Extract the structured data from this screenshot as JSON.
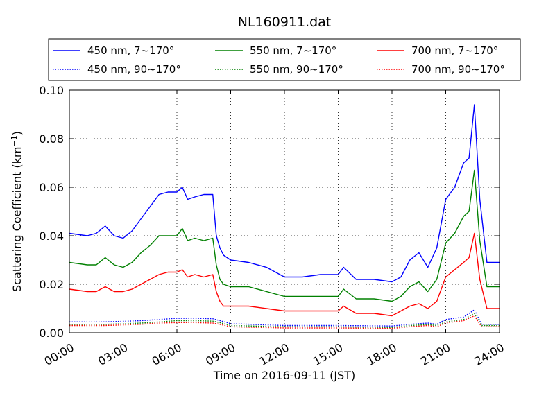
{
  "chart_data": {
    "type": "line",
    "title": "NL160911.dat",
    "xlabel": "Time on 2016-09-11 (JST)",
    "ylabel_main": "Scattering Coefficient (km",
    "ylabel_sup": "−1",
    "ylabel_tail": ")",
    "xlim": [
      0,
      24
    ],
    "ylim": [
      0,
      0.1
    ],
    "grid": true,
    "legend_position": "top",
    "x_ticks": [
      {
        "value": 0,
        "label": "00:00"
      },
      {
        "value": 3,
        "label": "03:00"
      },
      {
        "value": 6,
        "label": "06:00"
      },
      {
        "value": 9,
        "label": "09:00"
      },
      {
        "value": 12,
        "label": "12:00"
      },
      {
        "value": 15,
        "label": "15:00"
      },
      {
        "value": 18,
        "label": "18:00"
      },
      {
        "value": 21,
        "label": "21:00"
      },
      {
        "value": 24,
        "label": "24:00"
      }
    ],
    "y_ticks": [
      {
        "value": 0,
        "label": "0.00"
      },
      {
        "value": 0.02,
        "label": "0.02"
      },
      {
        "value": 0.04,
        "label": "0.04"
      },
      {
        "value": 0.06,
        "label": "0.06"
      },
      {
        "value": 0.08,
        "label": "0.08"
      },
      {
        "value": 0.1,
        "label": "0.10"
      }
    ],
    "series": [
      {
        "name": "450 nm, 7∼170°",
        "color": "#0000ff",
        "style": "solid",
        "x": [
          0,
          1,
          1.5,
          2,
          2.5,
          3,
          3.5,
          4,
          4.5,
          5,
          5.5,
          6,
          6.3,
          6.6,
          7,
          7.5,
          8,
          8.2,
          8.4,
          8.6,
          9,
          10,
          11,
          12,
          13,
          14,
          15,
          15.3,
          16,
          17,
          18,
          18.5,
          19,
          19.5,
          20,
          20.5,
          21,
          21.5,
          22,
          22.3,
          22.6,
          22.9,
          23.3,
          24
        ],
        "y": [
          0.041,
          0.04,
          0.041,
          0.044,
          0.04,
          0.039,
          0.042,
          0.047,
          0.052,
          0.057,
          0.058,
          0.058,
          0.06,
          0.055,
          0.056,
          0.057,
          0.057,
          0.04,
          0.035,
          0.032,
          0.03,
          0.029,
          0.027,
          0.023,
          0.023,
          0.024,
          0.024,
          0.027,
          0.022,
          0.022,
          0.021,
          0.023,
          0.03,
          0.033,
          0.027,
          0.035,
          0.055,
          0.06,
          0.07,
          0.072,
          0.094,
          0.055,
          0.029,
          0.029
        ]
      },
      {
        "name": "450 nm, 90∼170°",
        "color": "#0000ff",
        "style": "dotted",
        "x": [
          0,
          2,
          4,
          5,
          6,
          7,
          8,
          8.5,
          9,
          12,
          15,
          18,
          19,
          20,
          20.5,
          21,
          22,
          22.6,
          23,
          24
        ],
        "y": [
          0.0045,
          0.0045,
          0.005,
          0.0055,
          0.006,
          0.006,
          0.0058,
          0.0048,
          0.0038,
          0.003,
          0.003,
          0.0028,
          0.0035,
          0.004,
          0.0035,
          0.0055,
          0.0065,
          0.0095,
          0.0035,
          0.0035
        ]
      },
      {
        "name": "550 nm, 7∼170°",
        "color": "#008000",
        "style": "solid",
        "x": [
          0,
          1,
          1.5,
          2,
          2.5,
          3,
          3.5,
          4,
          4.5,
          5,
          5.5,
          6,
          6.3,
          6.6,
          7,
          7.5,
          8,
          8.2,
          8.4,
          8.6,
          9,
          10,
          11,
          12,
          13,
          14,
          15,
          15.3,
          16,
          17,
          18,
          18.5,
          19,
          19.5,
          20,
          20.5,
          21,
          21.5,
          22,
          22.3,
          22.6,
          22.9,
          23.3,
          24
        ],
        "y": [
          0.029,
          0.028,
          0.028,
          0.031,
          0.028,
          0.027,
          0.029,
          0.033,
          0.036,
          0.04,
          0.04,
          0.04,
          0.043,
          0.038,
          0.039,
          0.038,
          0.039,
          0.028,
          0.022,
          0.02,
          0.019,
          0.019,
          0.017,
          0.015,
          0.015,
          0.015,
          0.015,
          0.018,
          0.014,
          0.014,
          0.013,
          0.015,
          0.019,
          0.021,
          0.017,
          0.022,
          0.037,
          0.041,
          0.048,
          0.05,
          0.067,
          0.038,
          0.019,
          0.019
        ]
      },
      {
        "name": "550 nm, 90∼170°",
        "color": "#008000",
        "style": "dotted",
        "x": [
          0,
          2,
          4,
          5,
          6,
          7,
          8,
          8.5,
          9,
          12,
          15,
          18,
          19,
          20,
          20.5,
          21,
          22,
          22.6,
          23,
          24
        ],
        "y": [
          0.0035,
          0.0035,
          0.004,
          0.0045,
          0.005,
          0.005,
          0.0048,
          0.004,
          0.003,
          0.0025,
          0.0025,
          0.0022,
          0.003,
          0.0034,
          0.003,
          0.0045,
          0.0055,
          0.008,
          0.003,
          0.003
        ]
      },
      {
        "name": "700 nm, 7∼170°",
        "color": "#ff0000",
        "style": "solid",
        "x": [
          0,
          1,
          1.5,
          2,
          2.5,
          3,
          3.5,
          4,
          4.5,
          5,
          5.5,
          6,
          6.3,
          6.6,
          7,
          7.5,
          8,
          8.2,
          8.4,
          8.6,
          9,
          10,
          11,
          12,
          13,
          14,
          15,
          15.3,
          16,
          17,
          18,
          18.5,
          19,
          19.5,
          20,
          20.5,
          21,
          21.5,
          22,
          22.3,
          22.6,
          22.9,
          23.3,
          24
        ],
        "y": [
          0.018,
          0.017,
          0.017,
          0.019,
          0.017,
          0.017,
          0.018,
          0.02,
          0.022,
          0.024,
          0.025,
          0.025,
          0.026,
          0.023,
          0.024,
          0.023,
          0.024,
          0.017,
          0.013,
          0.011,
          0.011,
          0.011,
          0.01,
          0.009,
          0.009,
          0.009,
          0.009,
          0.011,
          0.008,
          0.008,
          0.007,
          0.009,
          0.011,
          0.012,
          0.01,
          0.013,
          0.023,
          0.026,
          0.029,
          0.031,
          0.041,
          0.022,
          0.01,
          0.01
        ]
      },
      {
        "name": "700 nm, 90∼170°",
        "color": "#ff0000",
        "style": "dotted",
        "x": [
          0,
          2,
          4,
          5,
          6,
          7,
          8,
          8.5,
          9,
          12,
          15,
          18,
          19,
          20,
          20.5,
          21,
          22,
          22.6,
          23,
          24
        ],
        "y": [
          0.003,
          0.003,
          0.0035,
          0.004,
          0.0042,
          0.0042,
          0.004,
          0.0033,
          0.0025,
          0.002,
          0.002,
          0.0018,
          0.0025,
          0.003,
          0.0025,
          0.004,
          0.005,
          0.007,
          0.0025,
          0.0025
        ]
      }
    ]
  }
}
